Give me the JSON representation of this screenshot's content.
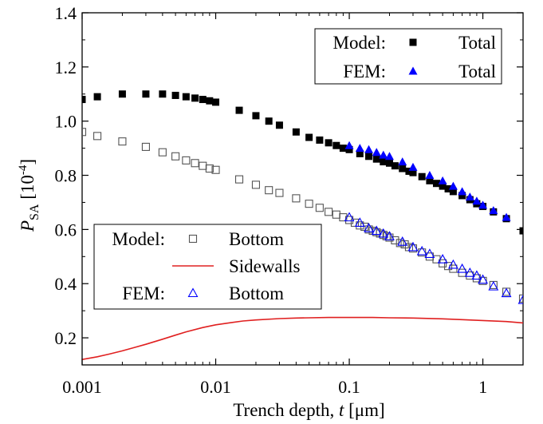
{
  "chart_data": {
    "type": "scatter",
    "xlabel": "Trench depth, t [μm]",
    "xlabel_parts": {
      "prefix": "Trench depth, ",
      "var": "t",
      "suffix": " [μm]"
    },
    "ylabel": "P_SA [10^-4]",
    "ylabel_parts": {
      "var": "P",
      "sub": "SA",
      "unit_open": " [10",
      "exp": "-4",
      "unit_close": "]"
    },
    "xscale": "log",
    "xlim": [
      0.001,
      2
    ],
    "ylim": [
      0.1,
      1.4
    ],
    "xticks": [
      {
        "value": 0.001,
        "label": "0.001"
      },
      {
        "value": 0.01,
        "label": "0.01"
      },
      {
        "value": 0.1,
        "label": "0.1"
      },
      {
        "value": 1,
        "label": "1"
      }
    ],
    "yticks": [
      {
        "value": 0.2,
        "label": "0.2"
      },
      {
        "value": 0.4,
        "label": "0.4"
      },
      {
        "value": 0.6,
        "label": "0.6"
      },
      {
        "value": 0.8,
        "label": "0.8"
      },
      {
        "value": 1.0,
        "label": "1.0"
      },
      {
        "value": 1.2,
        "label": "1.2"
      },
      {
        "value": 1.4,
        "label": "1.4"
      }
    ],
    "grid": false,
    "series": [
      {
        "key": "model_total",
        "marker": "filled-square",
        "color": "#000000",
        "x": [
          0.001,
          0.0013,
          0.002,
          0.003,
          0.004,
          0.005,
          0.006,
          0.007,
          0.008,
          0.009,
          0.01,
          0.015,
          0.02,
          0.025,
          0.03,
          0.04,
          0.05,
          0.06,
          0.07,
          0.08,
          0.09,
          0.1,
          0.12,
          0.14,
          0.16,
          0.18,
          0.2,
          0.22,
          0.25,
          0.28,
          0.3,
          0.35,
          0.4,
          0.45,
          0.5,
          0.55,
          0.6,
          0.7,
          0.8,
          0.9,
          1.0,
          1.2,
          1.5,
          2.0
        ],
        "y": [
          1.08,
          1.09,
          1.1,
          1.1,
          1.1,
          1.095,
          1.09,
          1.085,
          1.08,
          1.075,
          1.07,
          1.04,
          1.02,
          1.0,
          0.985,
          0.96,
          0.94,
          0.93,
          0.92,
          0.91,
          0.9,
          0.895,
          0.88,
          0.87,
          0.86,
          0.85,
          0.845,
          0.835,
          0.825,
          0.815,
          0.81,
          0.795,
          0.78,
          0.77,
          0.76,
          0.75,
          0.74,
          0.725,
          0.71,
          0.695,
          0.685,
          0.665,
          0.64,
          0.595
        ]
      },
      {
        "key": "fem_total",
        "marker": "filled-triangle",
        "color": "#0000ff",
        "x": [
          0.1,
          0.12,
          0.14,
          0.16,
          0.18,
          0.2,
          0.25,
          0.3,
          0.4,
          0.5,
          0.6,
          0.7,
          0.8,
          0.9,
          1.0,
          1.2,
          1.5
        ],
        "y": [
          0.91,
          0.9,
          0.895,
          0.885,
          0.875,
          0.87,
          0.85,
          0.83,
          0.8,
          0.78,
          0.76,
          0.74,
          0.72,
          0.705,
          0.69,
          0.67,
          0.645
        ]
      },
      {
        "key": "model_bottom",
        "marker": "open-square",
        "color": "#555555",
        "x": [
          0.001,
          0.0013,
          0.002,
          0.003,
          0.004,
          0.005,
          0.006,
          0.007,
          0.008,
          0.009,
          0.01,
          0.015,
          0.02,
          0.025,
          0.03,
          0.04,
          0.05,
          0.06,
          0.07,
          0.08,
          0.09,
          0.1,
          0.11,
          0.12,
          0.13,
          0.14,
          0.15,
          0.16,
          0.17,
          0.18,
          0.19,
          0.2,
          0.22,
          0.24,
          0.26,
          0.28,
          0.3,
          0.35,
          0.4,
          0.45,
          0.5,
          0.55,
          0.6,
          0.7,
          0.8,
          0.9,
          1.0,
          1.2,
          1.5,
          2.0
        ],
        "y": [
          0.96,
          0.945,
          0.925,
          0.905,
          0.885,
          0.87,
          0.855,
          0.845,
          0.835,
          0.825,
          0.82,
          0.785,
          0.765,
          0.745,
          0.735,
          0.715,
          0.695,
          0.68,
          0.665,
          0.655,
          0.645,
          0.635,
          0.625,
          0.615,
          0.61,
          0.6,
          0.595,
          0.59,
          0.585,
          0.58,
          0.575,
          0.57,
          0.56,
          0.55,
          0.545,
          0.535,
          0.53,
          0.515,
          0.5,
          0.49,
          0.475,
          0.465,
          0.455,
          0.44,
          0.43,
          0.42,
          0.41,
          0.395,
          0.37,
          0.345
        ]
      },
      {
        "key": "fem_bottom",
        "marker": "open-triangle",
        "color": "#0000ff",
        "x": [
          0.1,
          0.12,
          0.14,
          0.16,
          0.18,
          0.2,
          0.25,
          0.3,
          0.35,
          0.4,
          0.5,
          0.6,
          0.7,
          0.8,
          0.9,
          1.0,
          1.2,
          1.5,
          2.0
        ],
        "y": [
          0.645,
          0.625,
          0.605,
          0.595,
          0.585,
          0.575,
          0.555,
          0.535,
          0.52,
          0.51,
          0.49,
          0.47,
          0.455,
          0.44,
          0.43,
          0.415,
          0.39,
          0.365,
          0.34
        ]
      },
      {
        "key": "model_sidewalls",
        "marker": "line",
        "color": "#e02020",
        "x": [
          0.001,
          0.0013,
          0.0016,
          0.002,
          0.0025,
          0.003,
          0.004,
          0.005,
          0.006,
          0.008,
          0.01,
          0.013,
          0.016,
          0.02,
          0.03,
          0.04,
          0.05,
          0.07,
          0.1,
          0.15,
          0.2,
          0.3,
          0.5,
          0.7,
          1.0,
          1.5,
          2.0
        ],
        "y": [
          0.12,
          0.13,
          0.14,
          0.152,
          0.165,
          0.176,
          0.195,
          0.21,
          0.222,
          0.238,
          0.248,
          0.256,
          0.262,
          0.266,
          0.271,
          0.273,
          0.274,
          0.275,
          0.275,
          0.275,
          0.274,
          0.273,
          0.27,
          0.267,
          0.264,
          0.26,
          0.255
        ]
      }
    ],
    "legend_top": {
      "placement": "top-right",
      "rows": [
        {
          "group": "Model:",
          "marker": "filled-square",
          "color": "#000000",
          "label": "Total"
        },
        {
          "group": "FEM:",
          "marker": "filled-triangle",
          "color": "#0000ff",
          "label": "Total"
        }
      ]
    },
    "legend_bottom": {
      "placement": "bottom-left",
      "rows": [
        {
          "group": "Model:",
          "marker": "open-square",
          "color": "#555555",
          "label": "Bottom"
        },
        {
          "group": "",
          "marker": "line",
          "color": "#e02020",
          "label": "Sidewalls"
        },
        {
          "group": "FEM:",
          "marker": "open-triangle",
          "color": "#0000ff",
          "label": "Bottom"
        }
      ]
    }
  }
}
